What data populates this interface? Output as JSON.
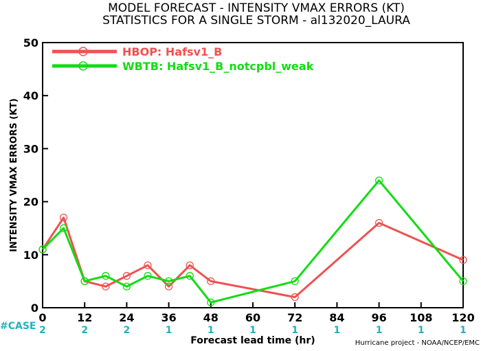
{
  "chart_data": {
    "type": "line",
    "title_line1": "MODEL FORECAST - INTENSITY VMAX ERRORS (KT)",
    "title_line2": "STATISTICS FOR A SINGLE STORM - al132020_LAURA",
    "xlabel": "Forecast lead time (hr)",
    "ylabel": "INTENSITY VMAX ERRORS (KT)",
    "xlim": [
      0,
      120
    ],
    "ylim": [
      0,
      50
    ],
    "x_ticks": [
      "0",
      "12",
      "24",
      "36",
      "48",
      "60",
      "72",
      "84",
      "96",
      "108",
      "120"
    ],
    "y_ticks": [
      "0",
      "10",
      "20",
      "30",
      "40",
      "50"
    ],
    "legend_position": "top-left",
    "series": [
      {
        "name": "HBOP: Hafsv1_B",
        "color": "#f05050",
        "points": [
          [
            0,
            11
          ],
          [
            6,
            17
          ],
          [
            12,
            5
          ],
          [
            18,
            4
          ],
          [
            24,
            6
          ],
          [
            30,
            8
          ],
          [
            36,
            4
          ],
          [
            42,
            8
          ],
          [
            48,
            5
          ],
          [
            72,
            2
          ],
          [
            96,
            16
          ],
          [
            120,
            9
          ]
        ]
      },
      {
        "name": "WBTB: Hafsv1_B_notcpbl_weak",
        "color": "#11dd11",
        "points": [
          [
            0,
            11
          ],
          [
            6,
            15
          ],
          [
            12,
            5
          ],
          [
            18,
            6
          ],
          [
            24,
            4
          ],
          [
            30,
            6
          ],
          [
            36,
            5
          ],
          [
            42,
            6
          ],
          [
            48,
            1
          ],
          [
            72,
            5
          ],
          [
            96,
            24
          ],
          [
            120,
            5
          ]
        ]
      }
    ],
    "case_label": "#CASE",
    "case_color": "#20b0c0",
    "case_counts": [
      {
        "x": 0,
        "n": "2"
      },
      {
        "x": 12,
        "n": "2"
      },
      {
        "x": 24,
        "n": "2"
      },
      {
        "x": 36,
        "n": "1"
      },
      {
        "x": 48,
        "n": "1"
      },
      {
        "x": 60,
        "n": "1"
      },
      {
        "x": 72,
        "n": "1"
      },
      {
        "x": 84,
        "n": "1"
      },
      {
        "x": 96,
        "n": "1"
      },
      {
        "x": 108,
        "n": "1"
      },
      {
        "x": 120,
        "n": "1"
      }
    ],
    "credit": "Hurricane project - NOAA/NCEP/EMC"
  }
}
